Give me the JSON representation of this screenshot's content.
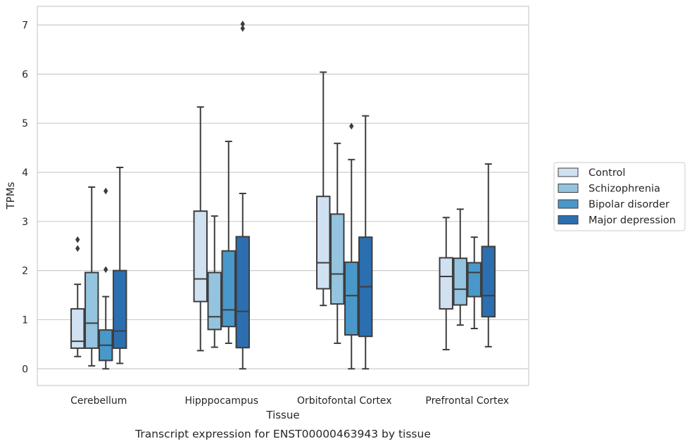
{
  "caption": "Transcript expression for ENST00000463943 by tissue",
  "chart_data": {
    "type": "box",
    "xlabel": "Tissue",
    "ylabel": "TPMs",
    "ylim": [
      -0.34,
      7.38
    ],
    "yticks": [
      0,
      1,
      2,
      3,
      4,
      5,
      6,
      7
    ],
    "grid": true,
    "legend_position": "right",
    "categories": [
      "Cerebellum",
      "Hipppocampus",
      "Orbitofontal Cortex",
      "Prefrontal Cortex"
    ],
    "series": [
      {
        "name": "Control",
        "color": "#d0e1f2",
        "boxes": [
          {
            "whislo": 0.25,
            "q1": 0.42,
            "med": 0.56,
            "q3": 1.22,
            "whishi": 1.72,
            "fliers": [
              2.45,
              2.63
            ]
          },
          {
            "whislo": 0.37,
            "q1": 1.37,
            "med": 1.83,
            "q3": 3.21,
            "whishi": 5.33,
            "fliers": []
          },
          {
            "whislo": 1.29,
            "q1": 1.63,
            "med": 2.16,
            "q3": 3.51,
            "whishi": 6.04,
            "fliers": []
          },
          {
            "whislo": 0.39,
            "q1": 1.22,
            "med": 1.88,
            "q3": 2.26,
            "whishi": 3.08,
            "fliers": []
          }
        ]
      },
      {
        "name": "Schizophrenia",
        "color": "#94c4df",
        "boxes": [
          {
            "whislo": 0.06,
            "q1": 0.42,
            "med": 0.93,
            "q3": 1.96,
            "whishi": 3.7,
            "fliers": []
          },
          {
            "whislo": 0.44,
            "q1": 0.8,
            "med": 1.06,
            "q3": 1.96,
            "whishi": 3.11,
            "fliers": []
          },
          {
            "whislo": 0.52,
            "q1": 1.32,
            "med": 1.93,
            "q3": 3.15,
            "whishi": 4.59,
            "fliers": []
          },
          {
            "whislo": 0.89,
            "q1": 1.3,
            "med": 1.62,
            "q3": 2.25,
            "whishi": 3.25,
            "fliers": []
          }
        ]
      },
      {
        "name": "Bipolar disorder",
        "color": "#4a98c9",
        "boxes": [
          {
            "whislo": 0.0,
            "q1": 0.17,
            "med": 0.48,
            "q3": 0.79,
            "whishi": 1.47,
            "fliers": [
              2.02,
              3.62
            ]
          },
          {
            "whislo": 0.52,
            "q1": 0.86,
            "med": 1.2,
            "q3": 2.4,
            "whishi": 4.63,
            "fliers": []
          },
          {
            "whislo": 0.0,
            "q1": 0.69,
            "med": 1.49,
            "q3": 2.17,
            "whishi": 4.26,
            "fliers": [
              4.94
            ]
          },
          {
            "whislo": 0.82,
            "q1": 1.47,
            "med": 1.96,
            "q3": 2.16,
            "whishi": 2.68,
            "fliers": []
          }
        ]
      },
      {
        "name": "Major depression",
        "color": "#2c6fb0",
        "boxes": [
          {
            "whislo": 0.11,
            "q1": 0.42,
            "med": 0.77,
            "q3": 2.0,
            "whishi": 4.1,
            "fliers": []
          },
          {
            "whislo": 0.0,
            "q1": 0.43,
            "med": 1.17,
            "q3": 2.69,
            "whishi": 3.57,
            "fliers": [
              6.93,
              7.02
            ]
          },
          {
            "whislo": 0.0,
            "q1": 0.66,
            "med": 1.67,
            "q3": 2.68,
            "whishi": 5.15,
            "fliers": []
          },
          {
            "whislo": 0.45,
            "q1": 1.06,
            "med": 1.49,
            "q3": 2.49,
            "whishi": 4.17,
            "fliers": []
          }
        ]
      }
    ]
  }
}
